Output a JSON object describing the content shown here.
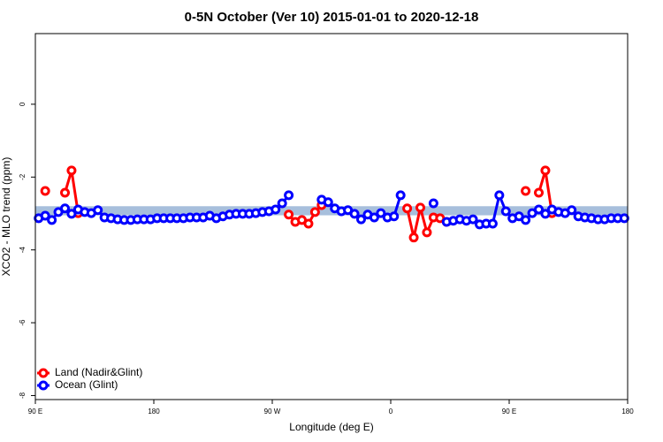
{
  "chart_data": {
    "type": "line",
    "title": "0-5N October (Ver 10)   2015-01-01 to 2020-12-18",
    "xlabel": "Longitude (deg E)",
    "ylabel": "XCO2 - MLO trend (ppm)",
    "x": [
      92.5,
      97.5,
      102.5,
      107.5,
      112.5,
      117.5,
      122.5,
      127.5,
      132.5,
      137.5,
      142.5,
      147.5,
      152.5,
      157.5,
      162.5,
      167.5,
      172.5,
      177.5,
      182.5,
      187.5,
      192.5,
      197.5,
      202.5,
      207.5,
      212.5,
      217.5,
      222.5,
      227.5,
      232.5,
      237.5,
      242.5,
      247.5,
      252.5,
      257.5,
      262.5,
      267.5,
      272.5,
      277.5,
      282.5,
      287.5,
      292.5,
      297.5,
      302.5,
      307.5,
      312.5,
      317.5,
      322.5,
      327.5,
      332.5,
      337.5,
      342.5,
      347.5,
      352.5,
      357.5,
      362.5,
      367.5,
      372.5,
      377.5,
      382.5,
      387.5,
      392.5,
      397.5,
      402.5,
      407.5,
      412.5,
      417.5,
      422.5,
      427.5,
      432.5,
      437.5,
      442.5,
      447.5,
      452.5,
      457.5,
      462.5,
      467.5,
      472.5,
      477.5,
      482.5,
      487.5,
      492.5,
      497.5,
      502.5,
      507.5,
      512.5,
      517.5,
      522.5,
      527.5,
      532.5,
      537.5
    ],
    "series": [
      {
        "name": "Land (Nadir&Glint)",
        "color": "#ff0000",
        "values": [
          null,
          -2.38,
          null,
          null,
          -2.43,
          -1.82,
          -2.99,
          null,
          null,
          null,
          null,
          null,
          null,
          null,
          null,
          null,
          null,
          null,
          null,
          null,
          null,
          null,
          null,
          null,
          null,
          null,
          null,
          null,
          null,
          null,
          null,
          null,
          null,
          null,
          null,
          null,
          null,
          null,
          -3.03,
          -3.23,
          -3.18,
          -3.28,
          -2.96,
          -2.77,
          null,
          null,
          null,
          null,
          null,
          null,
          null,
          null,
          null,
          null,
          null,
          null,
          -2.86,
          -3.66,
          -2.84,
          -3.52,
          -3.11,
          -3.13,
          -3.23,
          null,
          null,
          null,
          null,
          null,
          null,
          null,
          null,
          null,
          null,
          null,
          -2.38,
          null,
          -2.43,
          -1.82,
          -2.99,
          null,
          null,
          null,
          null,
          null,
          null,
          null,
          null,
          null,
          null,
          null
        ]
      },
      {
        "name": "Ocean (Glint)",
        "color": "#0000ff",
        "values": [
          -3.13,
          -3.06,
          -3.18,
          -2.96,
          -2.86,
          -3.01,
          -2.89,
          -2.96,
          -2.99,
          -2.91,
          -3.11,
          -3.13,
          -3.16,
          -3.18,
          -3.18,
          -3.16,
          -3.16,
          -3.16,
          -3.13,
          -3.13,
          -3.13,
          -3.13,
          -3.13,
          -3.11,
          -3.11,
          -3.11,
          -3.06,
          -3.13,
          -3.08,
          -3.03,
          -3.01,
          -3.01,
          -3.01,
          -2.99,
          -2.96,
          -2.94,
          -2.89,
          -2.72,
          -2.5,
          null,
          null,
          null,
          null,
          -2.62,
          -2.69,
          -2.86,
          -2.94,
          -2.91,
          -3.01,
          -3.16,
          -3.03,
          -3.11,
          -2.99,
          -3.11,
          -3.08,
          -2.5,
          null,
          null,
          null,
          null,
          -2.72,
          null,
          -3.23,
          -3.2,
          -3.16,
          -3.2,
          -3.16,
          -3.3,
          -3.28,
          -3.28,
          -2.5,
          -2.94,
          -3.13,
          -3.08,
          -3.18,
          -2.99,
          -2.89,
          -3.01,
          -2.89,
          -2.96,
          -2.99,
          -2.91,
          -3.08,
          -3.11,
          -3.13,
          -3.16,
          -3.16,
          -3.13,
          -3.13,
          -3.13
        ]
      }
    ],
    "band": {
      "range": [
        -3.05,
        -2.8
      ],
      "color": "#a7bfdc"
    },
    "xlim": [
      90,
      540
    ],
    "xticks": [
      {
        "value": 90,
        "label": "90 E"
      },
      180,
      {
        "value": 270,
        "label": "90 W"
      },
      {
        "value": 360,
        "label": "0"
      },
      {
        "value": 450,
        "label": "90 E"
      },
      {
        "value": 540,
        "label": "180"
      }
    ],
    "ylim": [
      -8.11,
      1.94
    ],
    "yticks": [
      0,
      -2,
      -4,
      -6,
      -8
    ],
    "legend": "bottom-left"
  }
}
